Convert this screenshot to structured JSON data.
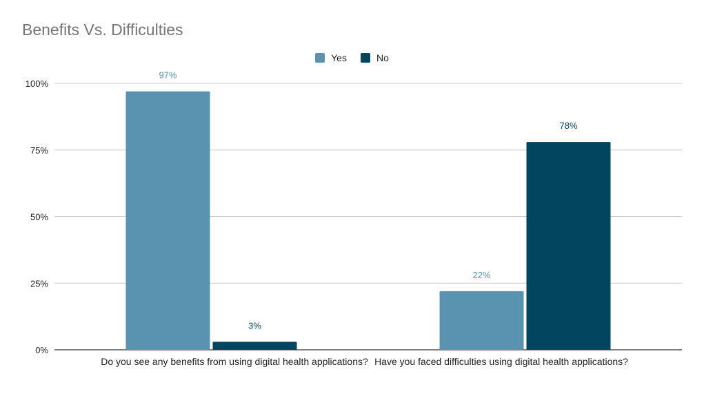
{
  "chart_data": {
    "type": "bar",
    "title": "Benefits Vs. Difficulties",
    "categories": [
      "Do you see any benefits from using digital health applications?",
      "Have you faced difficulties using digital health applications?"
    ],
    "series": [
      {
        "name": "Yes",
        "values": [
          97,
          22
        ],
        "labels": [
          "97%",
          "22%"
        ],
        "color": "#5a93b0"
      },
      {
        "name": "No",
        "values": [
          3,
          78
        ],
        "labels": [
          "3%",
          "78%"
        ],
        "color": "#02455f"
      }
    ],
    "ylim": [
      0,
      100
    ],
    "yticks": [
      {
        "value": 0,
        "label": "0%"
      },
      {
        "value": 25,
        "label": "25%"
      },
      {
        "value": 50,
        "label": "50%"
      },
      {
        "value": 75,
        "label": "75%"
      },
      {
        "value": 100,
        "label": "100%"
      }
    ],
    "legend_position": "top-center",
    "grid": true
  },
  "legend": {
    "yes": "Yes",
    "no": "No"
  }
}
